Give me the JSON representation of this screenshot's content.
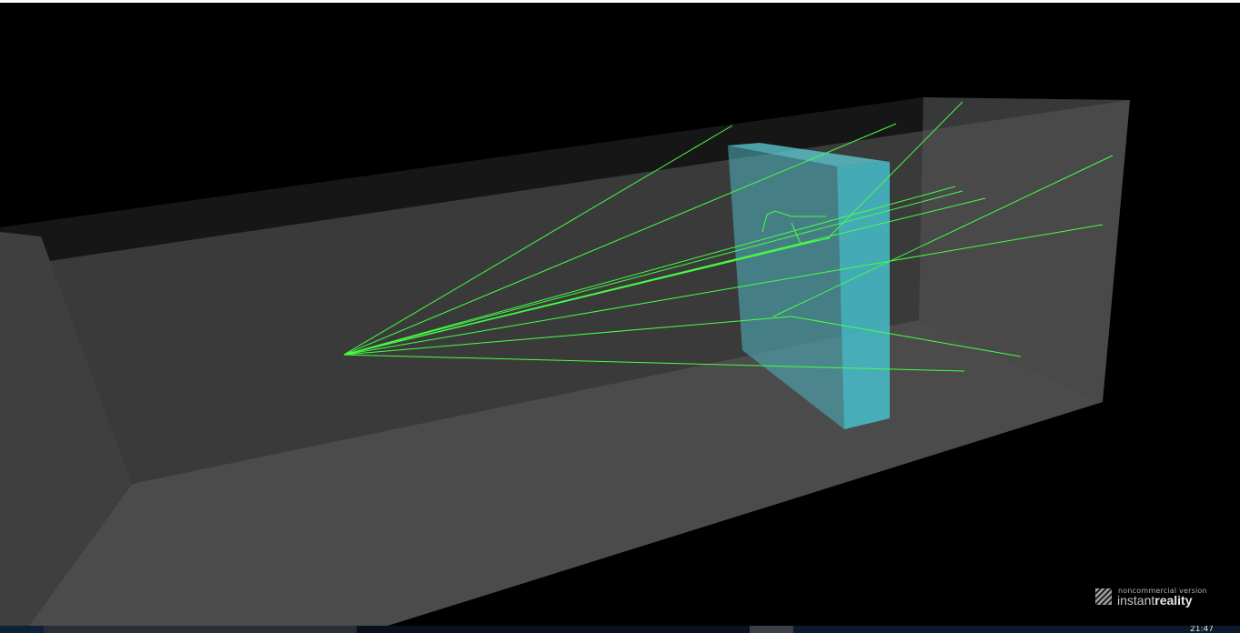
{
  "viewer": {
    "background": "#000000",
    "room_color": "#4a4a4a",
    "slab_color": "#4fc3cd",
    "ray_color": "#44ff44"
  },
  "watermark": {
    "line1": "noncommercial version",
    "line2_light": "instant",
    "line2_bold": "reality",
    "logo": "instantreality-logo-icon"
  },
  "taskbar": {
    "clock": "21:47"
  }
}
